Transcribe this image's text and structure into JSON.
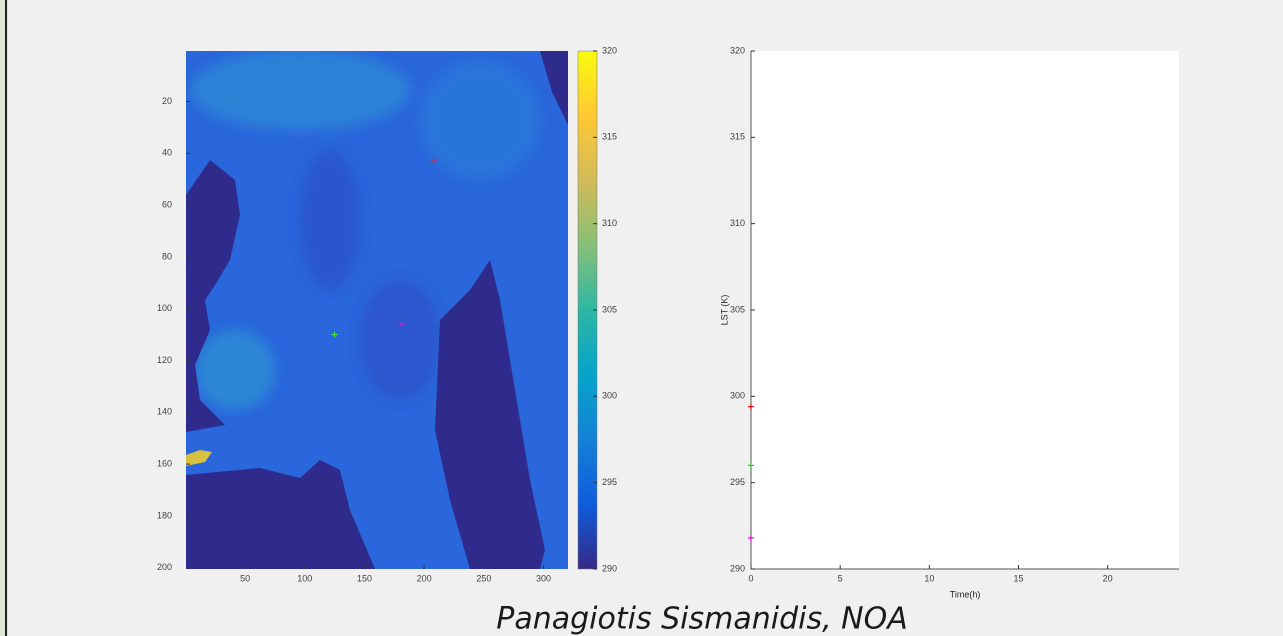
{
  "chart_data": [
    {
      "type": "image",
      "colormap": [
        "#352a87",
        "#0f5cdd",
        "#1481d6",
        "#06a4ca",
        "#2eb7a4",
        "#87bf77",
        "#d1bb59",
        "#fec832",
        "#f9fb0e"
      ],
      "xlim": [
        0.5,
        320.5
      ],
      "ylim": [
        0.5,
        200.5
      ],
      "y_reversed": true,
      "xticks": [
        50,
        100,
        150,
        200,
        250,
        300
      ],
      "yticks": [
        20,
        40,
        60,
        80,
        100,
        120,
        140,
        160,
        180,
        200
      ],
      "clim": [
        290,
        320
      ],
      "cticks": [
        290,
        295,
        300,
        305,
        310,
        315,
        320
      ],
      "marker": "+",
      "x": [
        208,
        125,
        181
      ],
      "values": [
        43,
        110,
        106
      ],
      "colors": [
        "#ff2020",
        "#40e040",
        "#c020c0"
      ]
    },
    {
      "type": "scatter",
      "xlabel": "Time(h)",
      "ylabel": "LST (K)",
      "xlim": [
        0,
        24
      ],
      "ylim": [
        290,
        320
      ],
      "xticks": [
        0,
        5,
        10,
        15,
        20
      ],
      "yticks": [
        290,
        295,
        300,
        305,
        310,
        315,
        320
      ],
      "marker": "+",
      "series": [
        {
          "color": "#e00000",
          "x": [
            0
          ],
          "values": [
            299.4
          ]
        },
        {
          "color": "#20d020",
          "x": [
            0
          ],
          "values": [
            296
          ]
        },
        {
          "color": "#e000e0",
          "x": [
            0
          ],
          "values": [
            291.8
          ]
        }
      ]
    }
  ],
  "caption": "Panagiotis Sismanidis, NOA"
}
